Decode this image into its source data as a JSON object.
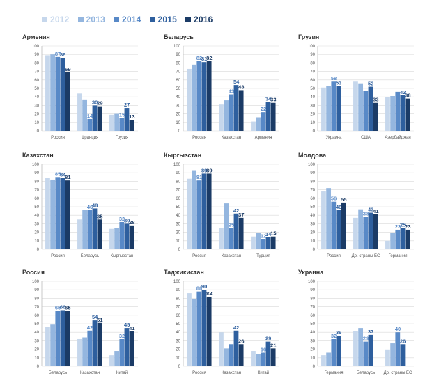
{
  "legend": {
    "items": [
      {
        "label": "2012",
        "color": "#c6d7ec"
      },
      {
        "label": "2013",
        "color": "#94b6df"
      },
      {
        "label": "2014",
        "color": "#5889c7"
      },
      {
        "label": "2015",
        "color": "#2e5f9e"
      },
      {
        "label": "2016",
        "color": "#1b3b66"
      }
    ]
  },
  "chart_data": [
    {
      "type": "bar",
      "title": "Армения",
      "categories": [
        "Россия",
        "Франция",
        "Грузия"
      ],
      "ylim": [
        0,
        100
      ],
      "yticks": [
        0,
        10,
        20,
        30,
        40,
        50,
        60,
        70,
        80,
        90,
        100
      ],
      "grid": true,
      "series": [
        {
          "name": "2012",
          "values": [
            89,
            44,
            19
          ],
          "labels": [
            "",
            "",
            ""
          ]
        },
        {
          "name": "2013",
          "values": [
            90,
            37,
            20
          ],
          "labels": [
            "",
            "",
            ""
          ]
        },
        {
          "name": "2014",
          "values": [
            87,
            14,
            15
          ],
          "labels": [
            "87",
            "14",
            "15"
          ]
        },
        {
          "name": "2015",
          "values": [
            86,
            30,
            27
          ],
          "labels": [
            "86",
            "30",
            "27"
          ]
        },
        {
          "name": "2016",
          "values": [
            69,
            29,
            13
          ],
          "labels": [
            "69",
            "29",
            "13"
          ]
        }
      ]
    },
    {
      "type": "bar",
      "title": "Беларусь",
      "categories": [
        "Россия",
        "Казахстан",
        "Армения"
      ],
      "ylim": [
        0,
        100
      ],
      "yticks": [
        0,
        10,
        20,
        30,
        40,
        50,
        60,
        70,
        80,
        90,
        100
      ],
      "grid": true,
      "series": [
        {
          "name": "2012",
          "values": [
            73,
            31,
            11
          ],
          "labels": [
            "",
            "",
            ""
          ]
        },
        {
          "name": "2013",
          "values": [
            78,
            36,
            16
          ],
          "labels": [
            "",
            "",
            ""
          ]
        },
        {
          "name": "2014",
          "values": [
            82,
            43,
            22
          ],
          "labels": [
            "82",
            "43",
            "22"
          ]
        },
        {
          "name": "2015",
          "values": [
            81,
            54,
            34
          ],
          "labels": [
            "81",
            "54",
            "34"
          ]
        },
        {
          "name": "2016",
          "values": [
            82,
            48,
            33
          ],
          "labels": [
            "82",
            "48",
            "33"
          ]
        }
      ]
    },
    {
      "type": "bar",
      "title": "Грузия",
      "categories": [
        "Украина",
        "США",
        "Азербайджан"
      ],
      "ylim": [
        0,
        100
      ],
      "yticks": [
        0,
        10,
        20,
        30,
        40,
        50,
        60,
        70,
        80,
        90,
        100
      ],
      "grid": true,
      "series": [
        {
          "name": "2012",
          "values": [
            51,
            58,
            40
          ],
          "labels": [
            "",
            "",
            ""
          ]
        },
        {
          "name": "2013",
          "values": [
            53,
            56,
            41
          ],
          "labels": [
            "",
            "",
            ""
          ]
        },
        {
          "name": "2014",
          "values": [
            58,
            47,
            46
          ],
          "labels": [
            "58",
            "",
            ""
          ]
        },
        {
          "name": "2015",
          "values": [
            53,
            52,
            42
          ],
          "labels": [
            "53",
            "52",
            "42"
          ]
        },
        {
          "name": "2016",
          "values": [
            null,
            33,
            38
          ],
          "labels": [
            "",
            "33",
            "38"
          ]
        }
      ]
    },
    {
      "type": "bar",
      "title": "Казахстан",
      "categories": [
        "Россия",
        "Беларусь",
        "Кыргызстан"
      ],
      "ylim": [
        0,
        100
      ],
      "yticks": [
        0,
        10,
        20,
        30,
        40,
        50,
        60,
        70,
        80,
        90,
        100
      ],
      "grid": true,
      "series": [
        {
          "name": "2012",
          "values": [
            84,
            35,
            24
          ],
          "labels": [
            "",
            "",
            ""
          ]
        },
        {
          "name": "2013",
          "values": [
            82,
            46,
            25
          ],
          "labels": [
            "",
            "",
            ""
          ]
        },
        {
          "name": "2014",
          "values": [
            85,
            46,
            32
          ],
          "labels": [
            "85",
            "46",
            "32"
          ]
        },
        {
          "name": "2015",
          "values": [
            84,
            48,
            30
          ],
          "labels": [
            "84",
            "48",
            "30"
          ]
        },
        {
          "name": "2016",
          "values": [
            81,
            35,
            28
          ],
          "labels": [
            "81",
            "35",
            "28"
          ]
        }
      ]
    },
    {
      "type": "bar",
      "title": "Кыргызстан",
      "categories": [
        "Россия",
        "Казахстан",
        "Турция"
      ],
      "ylim": [
        0,
        100
      ],
      "yticks": [
        0,
        10,
        20,
        30,
        40,
        50,
        60,
        70,
        80,
        90,
        100
      ],
      "grid": true,
      "series": [
        {
          "name": "2012",
          "values": [
            83,
            25,
            15
          ],
          "labels": [
            "",
            "",
            ""
          ]
        },
        {
          "name": "2013",
          "values": [
            93,
            54,
            19
          ],
          "labels": [
            "",
            "",
            ""
          ]
        },
        {
          "name": "2014",
          "values": [
            81,
            25,
            12
          ],
          "labels": [
            "81",
            "25",
            "12"
          ]
        },
        {
          "name": "2015",
          "values": [
            89,
            42,
            14
          ],
          "labels": [
            "89",
            "42",
            "14"
          ]
        },
        {
          "name": "2016",
          "values": [
            89,
            37,
            15
          ],
          "labels": [
            "89",
            "37",
            "15"
          ]
        }
      ]
    },
    {
      "type": "bar",
      "title": "Молдова",
      "categories": [
        "Россия",
        "Др. страны ЕС",
        "Германия"
      ],
      "ylim": [
        0,
        100
      ],
      "yticks": [
        0,
        10,
        20,
        30,
        40,
        50,
        60,
        70,
        80,
        90,
        100
      ],
      "grid": true,
      "series": [
        {
          "name": "2012",
          "values": [
            68,
            37,
            10
          ],
          "labels": [
            "",
            "",
            ""
          ]
        },
        {
          "name": "2013",
          "values": [
            72,
            47,
            19
          ],
          "labels": [
            "",
            "",
            ""
          ]
        },
        {
          "name": "2014",
          "values": [
            56,
            38,
            23
          ],
          "labels": [
            "56",
            "38",
            "23"
          ]
        },
        {
          "name": "2015",
          "values": [
            46,
            43,
            25
          ],
          "labels": [
            "46",
            "43",
            "25"
          ]
        },
        {
          "name": "2016",
          "values": [
            55,
            41,
            23
          ],
          "labels": [
            "55",
            "41",
            "23"
          ]
        }
      ]
    },
    {
      "type": "bar",
      "title": "Россия",
      "categories": [
        "Беларусь",
        "Казахстан",
        "Китай"
      ],
      "ylim": [
        0,
        100
      ],
      "yticks": [
        0,
        10,
        20,
        30,
        40,
        50,
        60,
        70,
        80,
        90,
        100
      ],
      "grid": true,
      "series": [
        {
          "name": "2012",
          "values": [
            46,
            32,
            13
          ],
          "labels": [
            "",
            "",
            ""
          ]
        },
        {
          "name": "2013",
          "values": [
            49,
            34,
            18
          ],
          "labels": [
            "",
            "",
            ""
          ]
        },
        {
          "name": "2014",
          "values": [
            65,
            42,
            32
          ],
          "labels": [
            "65",
            "42",
            "32"
          ]
        },
        {
          "name": "2015",
          "values": [
            66,
            54,
            45
          ],
          "labels": [
            "66",
            "54",
            "45"
          ]
        },
        {
          "name": "2016",
          "values": [
            65,
            51,
            41
          ],
          "labels": [
            "65",
            "51",
            "41"
          ]
        }
      ]
    },
    {
      "type": "bar",
      "title": "Таджикистан",
      "categories": [
        "Россия",
        "Казахстан",
        "Китай"
      ],
      "ylim": [
        0,
        100
      ],
      "yticks": [
        0,
        10,
        20,
        30,
        40,
        50,
        60,
        70,
        80,
        90,
        100
      ],
      "grid": true,
      "series": [
        {
          "name": "2012",
          "values": [
            86,
            40,
            18
          ],
          "labels": [
            "",
            "",
            ""
          ]
        },
        {
          "name": "2013",
          "values": [
            79,
            21,
            14
          ],
          "labels": [
            "",
            "",
            ""
          ]
        },
        {
          "name": "2014",
          "values": [
            88,
            26,
            16
          ],
          "labels": [
            "88",
            "",
            "16"
          ]
        },
        {
          "name": "2015",
          "values": [
            90,
            42,
            29
          ],
          "labels": [
            "90",
            "42",
            "29"
          ]
        },
        {
          "name": "2016",
          "values": [
            82,
            26,
            21
          ],
          "labels": [
            "82",
            "26",
            "21"
          ]
        }
      ]
    },
    {
      "type": "bar",
      "title": "Украина",
      "categories": [
        "Германия",
        "Беларусь",
        "Др. страны ЕС"
      ],
      "ylim": [
        0,
        100
      ],
      "yticks": [
        0,
        10,
        20,
        30,
        40,
        50,
        60,
        70,
        80,
        90,
        100
      ],
      "grid": true,
      "series": [
        {
          "name": "2012",
          "values": [
            13,
            41,
            19
          ],
          "labels": [
            "",
            "",
            ""
          ]
        },
        {
          "name": "2013",
          "values": [
            16,
            45,
            27
          ],
          "labels": [
            "",
            "",
            ""
          ]
        },
        {
          "name": "2014",
          "values": [
            32,
            29,
            40
          ],
          "labels": [
            "32",
            "29",
            "40"
          ]
        },
        {
          "name": "2015",
          "values": [
            36,
            37,
            26
          ],
          "labels": [
            "36",
            "37",
            "26"
          ]
        },
        {
          "name": "2016",
          "values": [
            null,
            null,
            null
          ],
          "labels": [
            "",
            "",
            ""
          ]
        }
      ]
    }
  ]
}
